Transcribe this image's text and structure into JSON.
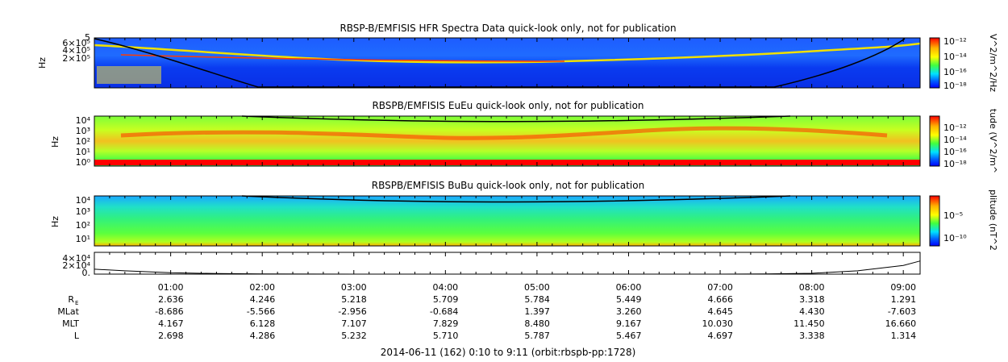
{
  "footer": "2014-06-11 (162) 0:10 to 9:11 (orbit:rbspb-pp:1728)",
  "colors": {
    "colorbar": [
      "#ff0000",
      "#ff8000",
      "#ffd700",
      "#7cfc00",
      "#00e060",
      "#00d0ff",
      "#0060ff",
      "#0000ff"
    ]
  },
  "chart_data": [
    {
      "type": "heatmap",
      "title": "RBSP-B/EMFISIS  HFR Spectra Data quick-look only, not for publication",
      "ylabel": "Hz",
      "yticks": [
        "6×10⁵",
        "4×10⁵",
        "2×10⁵"
      ],
      "ytick_top": "5",
      "colorbar_label": "V^2/m^2/Hz",
      "colorbar_ticks": [
        "10⁻¹²",
        "10⁻¹⁴",
        "10⁻¹⁶",
        "10⁻¹⁸"
      ],
      "colorbar_range": [
        -18,
        -12
      ]
    },
    {
      "type": "heatmap",
      "title": "RBSPB/EMFISIS  EuEu quick-look only, not for publication",
      "ylabel": "Hz",
      "yticks": [
        "10⁴",
        "10³",
        "10²",
        "10¹",
        "10⁰"
      ],
      "colorbar_label": "tude (V^2/m^",
      "colorbar_ticks": [
        "10⁻¹²",
        "10⁻¹⁴",
        "10⁻¹⁶",
        "10⁻¹⁸"
      ],
      "colorbar_range": [
        -18,
        -12
      ]
    },
    {
      "type": "heatmap",
      "title": "RBSPB/EMFISIS  BuBu quick-look only, not for publication",
      "ylabel": "Hz",
      "yticks": [
        "10⁴",
        "10³",
        "10²",
        "10¹"
      ],
      "colorbar_label": "plitude (nT^2",
      "colorbar_ticks": [
        "10⁻⁵",
        "10⁻¹⁰"
      ],
      "colorbar_range": [
        -12,
        -3
      ]
    },
    {
      "type": "line",
      "yticks": [
        "4×10⁴",
        "2×10⁴",
        "0."
      ],
      "ylim": [
        0,
        40000
      ],
      "x_hours": [
        0.17,
        0.5,
        1,
        1.5,
        2,
        3,
        4,
        5,
        6,
        7,
        7.5,
        8,
        8.5,
        9,
        9.18
      ],
      "values": [
        9000,
        6000,
        2500,
        1000,
        300,
        0,
        0,
        0,
        0,
        0,
        300,
        1500,
        6000,
        16000,
        24000
      ]
    }
  ],
  "ephemeris": {
    "times": [
      "01:00",
      "02:00",
      "03:00",
      "04:00",
      "05:00",
      "06:00",
      "07:00",
      "08:00",
      "09:00"
    ],
    "rows": [
      {
        "label": "R",
        "sub": "E",
        "values": [
          "2.636",
          "4.246",
          "5.218",
          "5.709",
          "5.784",
          "5.449",
          "4.666",
          "3.318",
          "1.291"
        ]
      },
      {
        "label": "MLat",
        "sub": "",
        "values": [
          "-8.686",
          "-5.566",
          "-2.956",
          "-0.684",
          "1.397",
          "3.260",
          "4.645",
          "4.430",
          "-7.603"
        ]
      },
      {
        "label": "MLT",
        "sub": "",
        "values": [
          "4.167",
          "6.128",
          "7.107",
          "7.829",
          "8.480",
          "9.167",
          "10.030",
          "11.450",
          "16.660"
        ]
      },
      {
        "label": "L",
        "sub": "",
        "values": [
          "2.698",
          "4.286",
          "5.232",
          "5.710",
          "5.787",
          "5.467",
          "4.697",
          "3.338",
          "1.314"
        ]
      }
    ]
  }
}
